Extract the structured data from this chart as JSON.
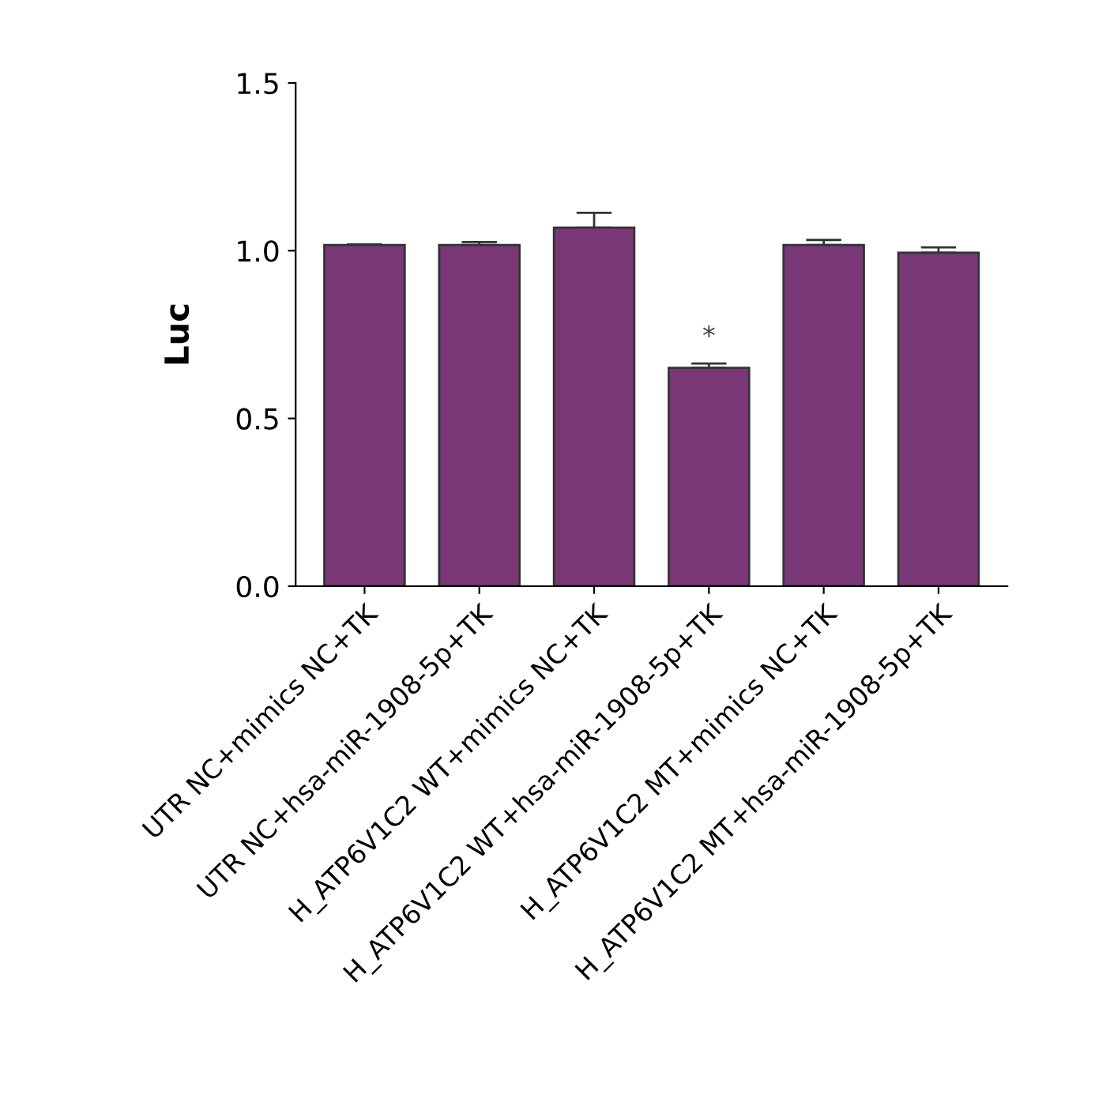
{
  "chart_data": {
    "type": "bar",
    "ylabel": "Luc",
    "categories": [
      "UTR NC+mimics NC+TK",
      "UTR NC+hsa-miR-1908-5p+TK",
      "H_ATP6V1C2 WT+mimics NC+TK",
      "H_ATP6V1C2 WT+hsa-miR-1908-5p+TK",
      "H_ATP6V1C2 MT+mimics NC+TK",
      "H_ATP6V1C2 MT+hsa-miR-1908-5p+TK"
    ],
    "values": [
      1.017,
      1.017,
      1.069,
      0.651,
      1.017,
      0.994
    ],
    "errors": [
      0.002,
      0.009,
      0.044,
      0.013,
      0.015,
      0.016
    ],
    "color": "#7a3878",
    "ylim": [
      0,
      1.5
    ],
    "yticks": [
      {
        "value": 0,
        "label": "0.0"
      },
      0.5,
      {
        "value": 1,
        "label": "1.0"
      },
      1.5
    ],
    "annotations": [
      {
        "text": "*",
        "x": "H_ATP6V1C2 WT+hsa-miR-1908-5p+TK",
        "y": 0.664
      }
    ],
    "grid": false,
    "legend": false
  }
}
